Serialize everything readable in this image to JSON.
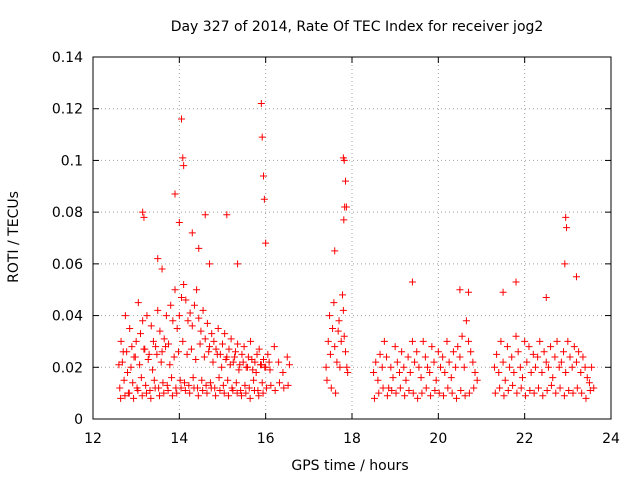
{
  "chart_data": {
    "type": "scatter",
    "title": "Day 327 of 2014, Rate Of TEC Index for receiver jog2",
    "xlabel": "GPS time / hours",
    "ylabel": "ROTI / TECUs",
    "xlim": [
      12,
      24
    ],
    "ylim": [
      0,
      0.14
    ],
    "xticks": [
      "12",
      "14",
      "16",
      "18",
      "20",
      "22",
      "24"
    ],
    "yticks": [
      "0",
      "0.02",
      "0.04",
      "0.06",
      "0.08",
      "0.1",
      "0.12",
      "0.14"
    ],
    "grid": true,
    "marker": "+",
    "color": "#ff0000",
    "series": [
      {
        "name": "ROTI",
        "x": [
          12.6,
          12.65,
          12.7,
          12.75,
          12.8,
          12.85,
          12.9,
          12.95,
          13.0,
          13.05,
          13.1,
          13.15,
          13.2,
          13.25,
          13.3,
          13.35,
          13.4,
          13.45,
          13.5,
          13.55,
          13.6,
          13.65,
          13.7,
          13.75,
          13.8,
          13.85,
          13.9,
          13.95,
          14.0,
          14.05,
          14.1,
          14.15,
          14.2,
          14.25,
          14.3,
          14.35,
          14.4,
          14.45,
          14.5,
          14.55,
          14.6,
          14.65,
          14.7,
          14.75,
          14.8,
          14.85,
          14.9,
          14.95,
          15.0,
          15.05,
          15.1,
          15.15,
          15.2,
          15.25,
          15.3,
          15.35,
          15.4,
          15.45,
          15.5,
          15.55,
          15.6,
          15.65,
          15.7,
          15.75,
          15.8,
          15.85,
          15.9,
          15.95,
          16.0,
          16.05,
          16.1,
          16.2,
          16.3,
          16.4,
          16.5,
          16.55,
          12.62,
          12.72,
          12.82,
          12.92,
          13.02,
          13.12,
          13.22,
          13.32,
          13.42,
          13.52,
          13.62,
          13.72,
          13.82,
          13.92,
          14.02,
          14.12,
          14.22,
          14.32,
          14.42,
          14.52,
          14.62,
          14.72,
          14.82,
          14.92,
          15.02,
          15.12,
          15.22,
          15.32,
          15.42,
          15.52,
          15.62,
          15.72,
          15.82,
          15.92,
          16.02,
          16.12,
          16.22,
          16.32,
          16.42,
          16.52,
          12.68,
          12.78,
          12.88,
          12.98,
          13.08,
          13.18,
          13.28,
          13.38,
          13.48,
          13.58,
          13.68,
          13.78,
          13.88,
          13.98,
          14.08,
          14.18,
          14.28,
          14.38,
          14.48,
          14.58,
          14.68,
          14.78,
          14.88,
          14.98,
          15.08,
          15.18,
          15.28,
          15.38,
          15.48,
          15.58,
          15.68,
          15.78,
          15.88,
          15.98,
          16.08,
          12.64,
          12.74,
          12.84,
          12.94,
          13.04,
          13.14,
          13.24,
          13.34,
          13.44,
          13.54,
          13.64,
          13.74,
          13.84,
          13.94,
          14.04,
          14.14,
          14.24,
          14.34,
          14.44,
          14.54,
          14.64,
          14.74,
          14.84,
          14.94,
          15.04,
          15.14,
          15.24,
          15.34,
          15.44,
          15.54,
          15.64,
          15.74,
          15.84,
          15.94,
          13.15,
          13.18,
          14.05,
          14.08,
          14.1,
          15.9,
          15.92,
          15.95,
          15.97,
          16.0,
          13.5,
          13.9,
          14.0,
          14.3,
          14.6,
          15.1,
          15.35,
          14.45,
          14.7,
          13.6,
          17.4,
          17.45,
          17.5,
          17.55,
          17.6,
          17.65,
          17.7,
          17.75,
          17.8,
          17.85,
          17.9,
          17.42,
          17.52,
          17.62,
          17.72,
          17.82,
          17.48,
          17.58,
          17.68,
          17.78,
          17.88,
          17.6,
          17.8,
          17.82,
          17.85,
          17.83,
          17.81,
          17.87,
          18.5,
          18.55,
          18.6,
          18.65,
          18.7,
          18.75,
          18.8,
          18.85,
          18.9,
          18.95,
          19.0,
          19.05,
          19.1,
          19.15,
          19.2,
          19.25,
          19.3,
          19.35,
          19.4,
          19.45,
          19.5,
          19.55,
          19.6,
          19.65,
          19.7,
          19.75,
          19.8,
          19.85,
          19.9,
          19.95,
          20.0,
          20.05,
          20.1,
          20.15,
          20.2,
          20.25,
          20.3,
          20.35,
          20.4,
          20.45,
          20.5,
          20.55,
          20.6,
          20.65,
          20.7,
          20.75,
          20.8,
          20.85,
          20.9,
          18.52,
          18.62,
          18.72,
          18.82,
          18.92,
          19.02,
          19.12,
          19.22,
          19.32,
          19.42,
          19.52,
          19.62,
          19.72,
          19.82,
          19.92,
          20.02,
          20.12,
          20.22,
          20.32,
          20.42,
          20.52,
          20.62,
          20.72,
          20.82,
          21.3,
          21.35,
          21.4,
          21.45,
          21.5,
          21.55,
          21.6,
          21.65,
          21.7,
          21.75,
          21.8,
          21.85,
          21.9,
          21.95,
          22.0,
          22.05,
          22.1,
          22.15,
          22.2,
          22.25,
          22.3,
          22.35,
          22.4,
          22.45,
          22.5,
          22.55,
          22.6,
          22.65,
          22.7,
          22.75,
          22.8,
          22.85,
          22.9,
          22.95,
          23.0,
          23.05,
          23.1,
          23.15,
          23.2,
          23.25,
          23.3,
          23.35,
          23.4,
          23.45,
          23.5,
          23.55,
          23.6,
          21.32,
          21.42,
          21.52,
          21.62,
          21.72,
          21.82,
          21.92,
          22.02,
          22.12,
          22.22,
          22.32,
          22.42,
          22.52,
          22.62,
          22.72,
          22.82,
          22.92,
          23.02,
          23.12,
          23.22,
          23.32,
          23.42,
          23.52,
          22.95,
          22.97,
          22.93,
          23.2,
          22.5,
          21.8,
          21.5,
          20.5,
          20.7,
          19.4
        ],
        "y": [
          0.021,
          0.03,
          0.026,
          0.04,
          0.018,
          0.035,
          0.028,
          0.024,
          0.03,
          0.045,
          0.033,
          0.038,
          0.027,
          0.04,
          0.025,
          0.036,
          0.03,
          0.028,
          0.042,
          0.034,
          0.026,
          0.031,
          0.04,
          0.029,
          0.044,
          0.038,
          0.05,
          0.035,
          0.04,
          0.047,
          0.052,
          0.046,
          0.038,
          0.041,
          0.036,
          0.044,
          0.05,
          0.039,
          0.034,
          0.042,
          0.031,
          0.037,
          0.028,
          0.033,
          0.03,
          0.027,
          0.035,
          0.025,
          0.029,
          0.033,
          0.024,
          0.027,
          0.031,
          0.022,
          0.026,
          0.029,
          0.021,
          0.025,
          0.028,
          0.02,
          0.024,
          0.03,
          0.019,
          0.022,
          0.025,
          0.027,
          0.021,
          0.023,
          0.02,
          0.025,
          0.019,
          0.028,
          0.022,
          0.018,
          0.024,
          0.021,
          0.012,
          0.015,
          0.01,
          0.014,
          0.012,
          0.016,
          0.013,
          0.011,
          0.015,
          0.012,
          0.014,
          0.013,
          0.016,
          0.012,
          0.015,
          0.014,
          0.013,
          0.016,
          0.012,
          0.015,
          0.013,
          0.014,
          0.012,
          0.016,
          0.013,
          0.015,
          0.012,
          0.014,
          0.011,
          0.013,
          0.012,
          0.015,
          0.011,
          0.014,
          0.012,
          0.013,
          0.011,
          0.014,
          0.012,
          0.013,
          0.022,
          0.026,
          0.02,
          0.024,
          0.021,
          0.027,
          0.023,
          0.019,
          0.025,
          0.022,
          0.028,
          0.021,
          0.024,
          0.026,
          0.03,
          0.025,
          0.027,
          0.023,
          0.029,
          0.024,
          0.026,
          0.022,
          0.025,
          0.02,
          0.023,
          0.021,
          0.024,
          0.019,
          0.022,
          0.02,
          0.023,
          0.018,
          0.021,
          0.02,
          0.022,
          0.008,
          0.009,
          0.01,
          0.008,
          0.011,
          0.009,
          0.01,
          0.008,
          0.012,
          0.009,
          0.01,
          0.011,
          0.009,
          0.01,
          0.012,
          0.011,
          0.01,
          0.012,
          0.009,
          0.011,
          0.01,
          0.012,
          0.009,
          0.011,
          0.01,
          0.009,
          0.011,
          0.01,
          0.009,
          0.01,
          0.008,
          0.011,
          0.009,
          0.01,
          0.08,
          0.078,
          0.116,
          0.101,
          0.098,
          0.122,
          0.109,
          0.094,
          0.085,
          0.068,
          0.062,
          0.087,
          0.076,
          0.072,
          0.079,
          0.079,
          0.06,
          0.066,
          0.06,
          0.058,
          0.02,
          0.03,
          0.025,
          0.035,
          0.028,
          0.022,
          0.038,
          0.03,
          0.042,
          0.026,
          0.018,
          0.015,
          0.012,
          0.01,
          0.02,
          0.032,
          0.04,
          0.045,
          0.034,
          0.048,
          0.02,
          0.065,
          0.101,
          0.1,
          0.092,
          0.082,
          0.077,
          0.082,
          0.018,
          0.022,
          0.015,
          0.025,
          0.02,
          0.03,
          0.024,
          0.012,
          0.02,
          0.016,
          0.028,
          0.022,
          0.018,
          0.026,
          0.02,
          0.015,
          0.024,
          0.018,
          0.03,
          0.022,
          0.026,
          0.02,
          0.016,
          0.03,
          0.024,
          0.02,
          0.018,
          0.028,
          0.022,
          0.015,
          0.026,
          0.02,
          0.024,
          0.018,
          0.03,
          0.022,
          0.016,
          0.026,
          0.02,
          0.028,
          0.024,
          0.032,
          0.02,
          0.038,
          0.03,
          0.026,
          0.022,
          0.018,
          0.015,
          0.008,
          0.01,
          0.012,
          0.009,
          0.011,
          0.01,
          0.012,
          0.009,
          0.011,
          0.01,
          0.008,
          0.01,
          0.012,
          0.009,
          0.011,
          0.01,
          0.009,
          0.012,
          0.01,
          0.008,
          0.011,
          0.009,
          0.01,
          0.012,
          0.02,
          0.025,
          0.018,
          0.03,
          0.022,
          0.015,
          0.028,
          0.02,
          0.024,
          0.018,
          0.032,
          0.026,
          0.02,
          0.016,
          0.03,
          0.022,
          0.028,
          0.018,
          0.025,
          0.02,
          0.024,
          0.03,
          0.018,
          0.026,
          0.022,
          0.02,
          0.028,
          0.016,
          0.024,
          0.03,
          0.02,
          0.022,
          0.026,
          0.018,
          0.03,
          0.024,
          0.02,
          0.028,
          0.022,
          0.026,
          0.018,
          0.024,
          0.02,
          0.016,
          0.014,
          0.02,
          0.012,
          0.01,
          0.012,
          0.009,
          0.011,
          0.013,
          0.01,
          0.012,
          0.009,
          0.011,
          0.01,
          0.012,
          0.009,
          0.011,
          0.013,
          0.01,
          0.012,
          0.009,
          0.011,
          0.01,
          0.012,
          0.01,
          0.008,
          0.011,
          0.078,
          0.074,
          0.06,
          0.055,
          0.047,
          0.053,
          0.049,
          0.05,
          0.049,
          0.053
        ]
      }
    ]
  }
}
